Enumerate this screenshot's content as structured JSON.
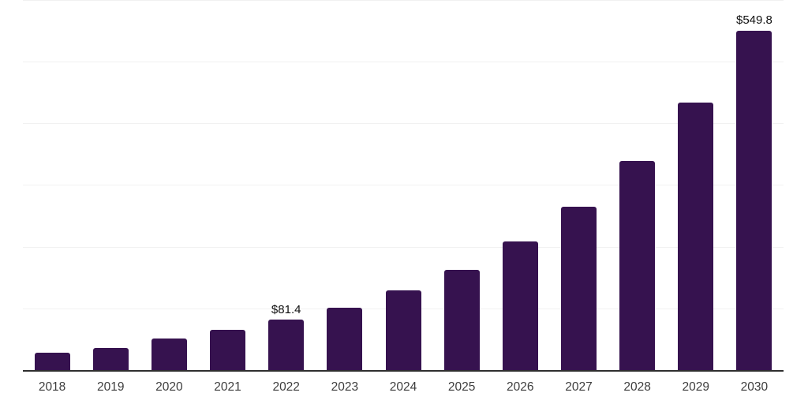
{
  "chart_data": {
    "type": "bar",
    "title": "",
    "xlabel": "",
    "ylabel": "",
    "categories": [
      "2018",
      "2019",
      "2020",
      "2021",
      "2022",
      "2023",
      "2024",
      "2025",
      "2026",
      "2027",
      "2028",
      "2029",
      "2030"
    ],
    "values": [
      28.5,
      35.4,
      51.5,
      65.0,
      81.4,
      101.0,
      128.6,
      162.9,
      208.0,
      264.2,
      338.9,
      432.9,
      549.8
    ],
    "data_labels": {
      "2022": "$81.4",
      "2030": "$549.8"
    },
    "ylim": [
      0,
      600
    ],
    "gridline_step": 100,
    "grid": true,
    "legend": "none",
    "y_tick_labels_visible": false,
    "colors": {
      "bar": "#36124f",
      "gridline": "#f1f1f1",
      "axis_line": "#2f2f2f",
      "tick_label": "#3d3d3d",
      "data_label": "#111111",
      "background": "#ffffff"
    }
  }
}
